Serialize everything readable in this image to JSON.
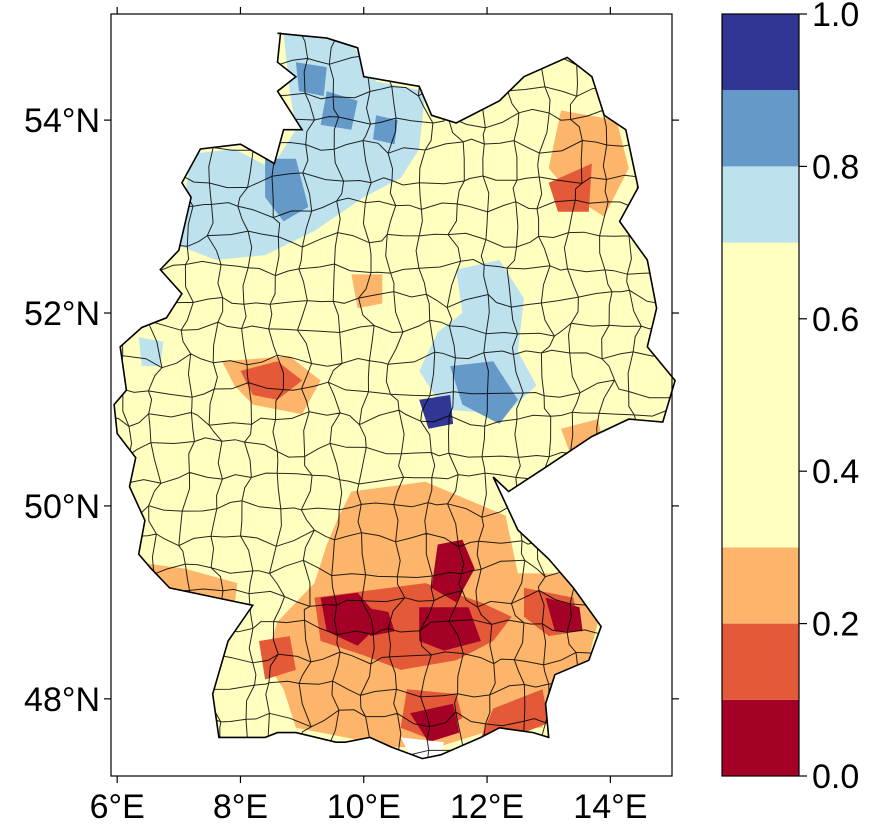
{
  "map": {
    "lon_range": [
      5.9,
      15.0
    ],
    "lat_range": [
      47.2,
      55.1
    ],
    "x_ticks": [
      {
        "value": 6,
        "label": "6°E"
      },
      {
        "value": 8,
        "label": "8°E"
      },
      {
        "value": 10,
        "label": "10°E"
      },
      {
        "value": 12,
        "label": "12°E"
      },
      {
        "value": 14,
        "label": "14°E"
      }
    ],
    "y_ticks": [
      {
        "value": 48,
        "label": "48°N"
      },
      {
        "value": 50,
        "label": "50°N"
      },
      {
        "value": 52,
        "label": "52°N"
      },
      {
        "value": 54,
        "label": "54°N"
      }
    ],
    "region_outline": [
      [
        8.6,
        54.9
      ],
      [
        9.4,
        54.85
      ],
      [
        9.9,
        54.75
      ],
      [
        10.0,
        54.45
      ],
      [
        10.9,
        54.35
      ],
      [
        11.1,
        54.05
      ],
      [
        11.5,
        53.97
      ],
      [
        12.2,
        54.2
      ],
      [
        12.6,
        54.45
      ],
      [
        13.3,
        54.65
      ],
      [
        13.7,
        54.45
      ],
      [
        13.9,
        54.05
      ],
      [
        14.25,
        53.9
      ],
      [
        14.45,
        53.3
      ],
      [
        14.15,
        52.95
      ],
      [
        14.6,
        52.55
      ],
      [
        14.75,
        52.05
      ],
      [
        14.6,
        51.65
      ],
      [
        15.05,
        51.3
      ],
      [
        14.85,
        50.87
      ],
      [
        14.3,
        50.9
      ],
      [
        13.7,
        50.72
      ],
      [
        12.95,
        50.4
      ],
      [
        12.35,
        50.15
      ],
      [
        12.1,
        50.3
      ],
      [
        12.5,
        49.75
      ],
      [
        13.0,
        49.45
      ],
      [
        13.4,
        49.15
      ],
      [
        13.85,
        48.75
      ],
      [
        13.65,
        48.4
      ],
      [
        13.1,
        48.25
      ],
      [
        12.95,
        47.95
      ],
      [
        13.0,
        47.6
      ],
      [
        12.75,
        47.65
      ],
      [
        12.2,
        47.7
      ],
      [
        11.9,
        47.6
      ],
      [
        11.25,
        47.42
      ],
      [
        10.95,
        47.38
      ],
      [
        10.45,
        47.5
      ],
      [
        10.1,
        47.6
      ],
      [
        9.7,
        47.55
      ],
      [
        9.55,
        47.55
      ],
      [
        8.9,
        47.65
      ],
      [
        8.6,
        47.65
      ],
      [
        8.4,
        47.6
      ],
      [
        7.65,
        47.6
      ],
      [
        7.55,
        48.05
      ],
      [
        7.8,
        48.6
      ],
      [
        8.2,
        48.97
      ],
      [
        7.6,
        49.05
      ],
      [
        6.85,
        49.15
      ],
      [
        6.55,
        49.35
      ],
      [
        6.35,
        49.5
      ],
      [
        6.45,
        49.85
      ],
      [
        6.2,
        50.2
      ],
      [
        6.3,
        50.5
      ],
      [
        6.0,
        50.75
      ],
      [
        5.95,
        51.05
      ],
      [
        6.15,
        51.2
      ],
      [
        6.05,
        51.65
      ],
      [
        6.4,
        51.85
      ],
      [
        6.8,
        51.95
      ],
      [
        7.05,
        52.2
      ],
      [
        6.7,
        52.45
      ],
      [
        7.0,
        52.65
      ],
      [
        7.2,
        53.2
      ],
      [
        7.05,
        53.35
      ],
      [
        7.35,
        53.7
      ],
      [
        8.0,
        53.75
      ],
      [
        8.55,
        53.55
      ],
      [
        8.7,
        53.9
      ],
      [
        9.0,
        53.9
      ],
      [
        8.85,
        54.05
      ],
      [
        8.6,
        54.3
      ],
      [
        8.9,
        54.45
      ],
      [
        8.6,
        54.6
      ],
      [
        8.65,
        54.9
      ]
    ]
  },
  "colorbar": {
    "tick_labels": [
      {
        "value": 0.0,
        "label": "0.0"
      },
      {
        "value": 0.2,
        "label": "0.2"
      },
      {
        "value": 0.4,
        "label": "0.4"
      },
      {
        "value": 0.6,
        "label": "0.6"
      },
      {
        "value": 0.8,
        "label": "0.8"
      },
      {
        "value": 1.0,
        "label": "1.0"
      }
    ],
    "segments": [
      {
        "from": 0.0,
        "to": 0.1,
        "color": "#a50026"
      },
      {
        "from": 0.1,
        "to": 0.2,
        "color": "#e45a38"
      },
      {
        "from": 0.2,
        "to": 0.3,
        "color": "#fcb56a"
      },
      {
        "from": 0.3,
        "to": 0.7,
        "color": "#ffffc0"
      },
      {
        "from": 0.7,
        "to": 0.8,
        "color": "#bde2ee"
      },
      {
        "from": 0.8,
        "to": 0.9,
        "color": "#6599c8"
      },
      {
        "from": 0.9,
        "to": 1.0,
        "color": "#313695"
      }
    ]
  },
  "patches": [
    {
      "id": "north-west-lowlands",
      "color": "#bde2ee",
      "pts": [
        [
          7.2,
          53.65
        ],
        [
          7.1,
          53.2
        ],
        [
          7.0,
          52.7
        ],
        [
          7.6,
          52.55
        ],
        [
          8.4,
          52.6
        ],
        [
          9.2,
          52.85
        ],
        [
          10.0,
          53.2
        ],
        [
          10.6,
          53.4
        ],
        [
          10.9,
          53.7
        ],
        [
          11.0,
          54.3
        ],
        [
          10.2,
          54.4
        ],
        [
          9.8,
          54.8
        ],
        [
          8.7,
          54.9
        ],
        [
          8.8,
          54.3
        ],
        [
          8.9,
          53.9
        ],
        [
          8.5,
          53.5
        ],
        [
          7.9,
          53.7
        ]
      ]
    },
    {
      "id": "lower-saxony-inland",
      "color": "#6599c8",
      "pts": [
        [
          8.4,
          53.6
        ],
        [
          8.9,
          53.6
        ],
        [
          9.1,
          53.1
        ],
        [
          8.7,
          52.95
        ],
        [
          8.4,
          53.2
        ]
      ]
    },
    {
      "id": "elbe-region",
      "color": "#6599c8",
      "pts": [
        [
          9.4,
          54.3
        ],
        [
          9.9,
          54.2
        ],
        [
          9.8,
          53.9
        ],
        [
          9.3,
          53.95
        ]
      ]
    },
    {
      "id": "schleswig-west",
      "color": "#6599c8",
      "pts": [
        [
          8.9,
          54.6
        ],
        [
          9.4,
          54.55
        ],
        [
          9.35,
          54.25
        ],
        [
          8.95,
          54.3
        ]
      ]
    },
    {
      "id": "holstein-east",
      "color": "#6599c8",
      "pts": [
        [
          10.2,
          54.05
        ],
        [
          10.55,
          54.0
        ],
        [
          10.5,
          53.75
        ],
        [
          10.15,
          53.8
        ]
      ]
    },
    {
      "id": "westphalia-blue",
      "color": "#bde2ee",
      "pts": [
        [
          6.35,
          51.75
        ],
        [
          6.75,
          51.7
        ],
        [
          6.7,
          51.45
        ],
        [
          6.4,
          51.45
        ]
      ]
    },
    {
      "id": "central-blue",
      "color": "#bde2ee",
      "pts": [
        [
          11.5,
          52.45
        ],
        [
          12.2,
          52.55
        ],
        [
          12.6,
          52.15
        ],
        [
          12.5,
          51.6
        ],
        [
          12.8,
          51.25
        ],
        [
          12.3,
          50.95
        ],
        [
          11.3,
          51.0
        ],
        [
          10.9,
          51.4
        ],
        [
          11.2,
          51.8
        ],
        [
          11.6,
          52.0
        ]
      ]
    },
    {
      "id": "central-mid-blue",
      "color": "#6599c8",
      "pts": [
        [
          11.4,
          51.45
        ],
        [
          12.1,
          51.5
        ],
        [
          12.5,
          51.1
        ],
        [
          12.2,
          50.85
        ],
        [
          11.6,
          51.05
        ]
      ]
    },
    {
      "id": "central-dark",
      "color": "#313695",
      "pts": [
        [
          10.9,
          51.1
        ],
        [
          11.4,
          51.15
        ],
        [
          11.45,
          50.85
        ],
        [
          11.05,
          50.8
        ]
      ]
    },
    {
      "id": "brandenburg-orange",
      "color": "#fcb56a",
      "pts": [
        [
          13.2,
          54.1
        ],
        [
          14.1,
          54.0
        ],
        [
          14.3,
          53.5
        ],
        [
          13.9,
          53.0
        ],
        [
          13.4,
          53.2
        ],
        [
          13.0,
          53.5
        ]
      ]
    },
    {
      "id": "brandenburg-red",
      "color": "#e45a38",
      "pts": [
        [
          13.0,
          53.35
        ],
        [
          13.7,
          53.55
        ],
        [
          13.65,
          53.05
        ],
        [
          13.15,
          53.05
        ]
      ]
    },
    {
      "id": "westphalia-orange",
      "color": "#fcb56a",
      "pts": [
        [
          7.7,
          51.5
        ],
        [
          8.8,
          51.55
        ],
        [
          9.3,
          51.3
        ],
        [
          9.0,
          50.95
        ],
        [
          8.2,
          51.05
        ],
        [
          7.9,
          51.25
        ]
      ]
    },
    {
      "id": "westphalia-red",
      "color": "#e45a38",
      "pts": [
        [
          8.0,
          51.4
        ],
        [
          8.6,
          51.5
        ],
        [
          9.0,
          51.3
        ],
        [
          8.6,
          51.1
        ],
        [
          8.2,
          51.15
        ]
      ]
    },
    {
      "id": "hesse-orange",
      "color": "#fcb56a",
      "pts": [
        [
          9.8,
          52.4
        ],
        [
          10.3,
          52.4
        ],
        [
          10.3,
          52.1
        ],
        [
          9.9,
          52.05
        ]
      ]
    },
    {
      "id": "saxony-orange",
      "color": "#fcb56a",
      "pts": [
        [
          13.2,
          50.8
        ],
        [
          13.8,
          50.9
        ],
        [
          13.9,
          50.6
        ],
        [
          13.4,
          50.45
        ]
      ]
    },
    {
      "id": "franconia-orange",
      "color": "#fcb56a",
      "pts": [
        [
          9.8,
          50.15
        ],
        [
          11.0,
          50.25
        ],
        [
          12.3,
          49.9
        ],
        [
          12.5,
          49.3
        ],
        [
          13.2,
          49.3
        ],
        [
          13.8,
          48.8
        ],
        [
          13.6,
          48.3
        ],
        [
          13.0,
          48.0
        ],
        [
          12.9,
          47.7
        ],
        [
          12.2,
          47.7
        ],
        [
          11.2,
          47.5
        ],
        [
          10.5,
          47.5
        ],
        [
          9.7,
          47.6
        ],
        [
          8.9,
          47.7
        ],
        [
          8.7,
          48.1
        ],
        [
          8.4,
          48.4
        ],
        [
          8.6,
          48.8
        ],
        [
          9.2,
          49.2
        ],
        [
          9.4,
          49.6
        ],
        [
          9.6,
          49.9
        ]
      ]
    },
    {
      "id": "saarland-orange",
      "color": "#fcb56a",
      "pts": [
        [
          6.5,
          49.4
        ],
        [
          7.1,
          49.35
        ],
        [
          7.95,
          49.2
        ],
        [
          7.9,
          48.95
        ],
        [
          7.2,
          49.05
        ],
        [
          6.6,
          49.1
        ]
      ]
    },
    {
      "id": "bavaria-red-a",
      "color": "#e45a38",
      "pts": [
        [
          9.2,
          49.05
        ],
        [
          11.0,
          49.2
        ],
        [
          11.9,
          49.0
        ],
        [
          12.4,
          48.85
        ],
        [
          12.1,
          48.6
        ],
        [
          11.5,
          48.4
        ],
        [
          10.6,
          48.3
        ],
        [
          10.0,
          48.45
        ],
        [
          9.3,
          48.6
        ]
      ]
    },
    {
      "id": "bavaria-red-b",
      "color": "#e45a38",
      "pts": [
        [
          12.1,
          47.9
        ],
        [
          12.9,
          48.1
        ],
        [
          13.0,
          47.75
        ],
        [
          12.4,
          47.6
        ],
        [
          11.9,
          47.6
        ]
      ]
    },
    {
      "id": "bavaria-red-c",
      "color": "#e45a38",
      "pts": [
        [
          10.7,
          48.1
        ],
        [
          11.5,
          48.05
        ],
        [
          11.6,
          47.8
        ],
        [
          11.0,
          47.6
        ],
        [
          10.6,
          47.7
        ]
      ]
    },
    {
      "id": "bavaria-red-d",
      "color": "#e45a38",
      "pts": [
        [
          12.6,
          49.15
        ],
        [
          13.4,
          49.05
        ],
        [
          13.5,
          48.7
        ],
        [
          13.0,
          48.65
        ],
        [
          12.6,
          48.85
        ]
      ]
    },
    {
      "id": "swabia-red",
      "color": "#e45a38",
      "pts": [
        [
          8.3,
          48.6
        ],
        [
          8.8,
          48.65
        ],
        [
          8.9,
          48.3
        ],
        [
          8.4,
          48.2
        ]
      ]
    },
    {
      "id": "swabia-dark",
      "color": "#a50026",
      "pts": [
        [
          9.3,
          49.05
        ],
        [
          9.9,
          49.1
        ],
        [
          10.3,
          48.8
        ],
        [
          9.9,
          48.55
        ],
        [
          9.4,
          48.7
        ]
      ]
    },
    {
      "id": "swabia-dark-b",
      "color": "#a50026",
      "pts": [
        [
          10.0,
          48.95
        ],
        [
          10.4,
          48.9
        ],
        [
          10.5,
          48.7
        ],
        [
          10.1,
          48.65
        ]
      ]
    },
    {
      "id": "franconia-dark",
      "color": "#a50026",
      "pts": [
        [
          11.2,
          49.6
        ],
        [
          11.6,
          49.65
        ],
        [
          11.8,
          49.35
        ],
        [
          11.5,
          49.0
        ],
        [
          11.1,
          49.15
        ]
      ]
    },
    {
      "id": "bavaria-dark-a",
      "color": "#a50026",
      "pts": [
        [
          10.9,
          48.95
        ],
        [
          11.7,
          48.95
        ],
        [
          11.9,
          48.6
        ],
        [
          11.3,
          48.5
        ],
        [
          10.9,
          48.6
        ]
      ]
    },
    {
      "id": "bavaria-dark-b",
      "color": "#a50026",
      "pts": [
        [
          12.95,
          49.05
        ],
        [
          13.5,
          48.95
        ],
        [
          13.55,
          48.7
        ],
        [
          13.1,
          48.7
        ]
      ]
    },
    {
      "id": "bavaria-dark-c",
      "color": "#a50026",
      "pts": [
        [
          10.75,
          47.85
        ],
        [
          11.45,
          47.95
        ],
        [
          11.55,
          47.65
        ],
        [
          11.05,
          47.55
        ]
      ]
    },
    {
      "id": "alpine-white",
      "color": "#ffffff",
      "pts": [
        [
          10.6,
          47.6
        ],
        [
          11.3,
          47.55
        ],
        [
          11.25,
          47.38
        ],
        [
          10.8,
          47.35
        ]
      ]
    }
  ]
}
